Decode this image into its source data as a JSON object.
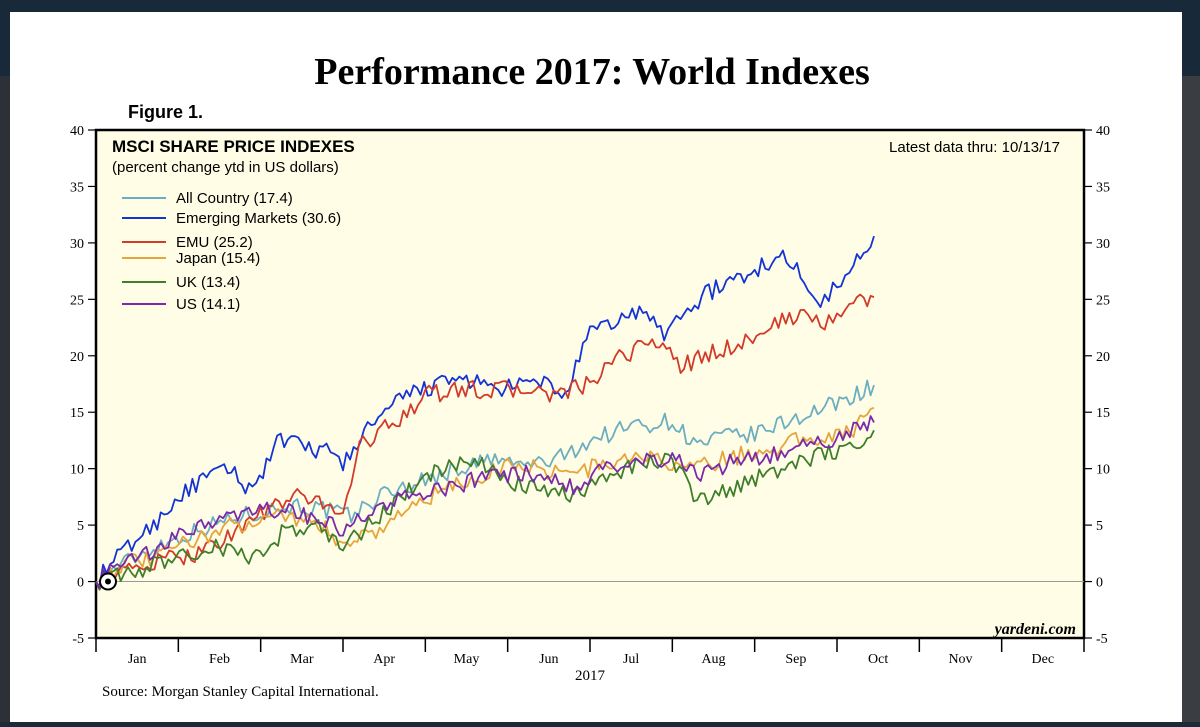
{
  "title": "Performance 2017: World Indexes",
  "figure_label": "Figure 1.",
  "source_note": "Source: Morgan Stanley Capital International.",
  "watermark": "yardeni.com",
  "colors": {
    "background": "#fffde6",
    "all_country": "#6aaec0",
    "emerging": "#1433d6",
    "emu": "#d23a2a",
    "japan": "#e6a43c",
    "uk": "#3f7e2a",
    "us": "#7a2aa8"
  },
  "chart_data": {
    "type": "line",
    "title": "MSCI SHARE PRICE INDEXES",
    "subtitle": "(percent change ytd in US dollars)",
    "latest_label": "Latest data thru: 10/13/17",
    "xlabel": "2017",
    "ylabel": "",
    "ylim": [
      -5,
      40
    ],
    "yticks": [
      -5,
      0,
      5,
      10,
      15,
      20,
      25,
      30,
      35,
      40
    ],
    "months": [
      "Jan",
      "Feb",
      "Mar",
      "Apr",
      "May",
      "Jun",
      "Jul",
      "Aug",
      "Sep",
      "Oct",
      "Nov",
      "Dec"
    ],
    "x_unit": "months since Jan 1",
    "xlim": [
      0,
      12
    ],
    "grid": false,
    "legend_position": "top-left",
    "series": [
      {
        "name": "All Country (17.4)",
        "color": "#6aaec0",
        "x": [
          0,
          0.3,
          0.7,
          1.1,
          1.6,
          2.0,
          2.4,
          2.8,
          3.1,
          3.5,
          4.0,
          4.4,
          4.8,
          5.2,
          5.6,
          6.0,
          6.5,
          7.0,
          7.3,
          7.6,
          8.0,
          8.5,
          8.9,
          9.2,
          9.45
        ],
        "values": [
          0,
          1.5,
          3.0,
          4.2,
          5.5,
          6.2,
          6.8,
          6.3,
          5.8,
          7.8,
          9.0,
          10.0,
          10.8,
          10.3,
          10.8,
          12.5,
          13.8,
          14.2,
          12.0,
          12.8,
          13.0,
          14.5,
          15.5,
          16.5,
          17.4
        ]
      },
      {
        "name": "Emerging Markets (30.6)",
        "color": "#1433d6",
        "x": [
          0,
          0.3,
          0.7,
          1.0,
          1.3,
          1.6,
          1.9,
          2.2,
          2.5,
          2.8,
          3.0,
          3.3,
          3.6,
          3.9,
          4.2,
          4.5,
          4.8,
          5.1,
          5.4,
          5.7,
          6.0,
          6.3,
          6.6,
          6.9,
          7.1,
          7.4,
          7.7,
          8.0,
          8.3,
          8.6,
          8.8,
          9.0,
          9.2,
          9.45
        ],
        "values": [
          0,
          2.5,
          5.0,
          7.5,
          9.0,
          10.0,
          8.0,
          12.5,
          12.0,
          11.5,
          10.5,
          13.5,
          15.5,
          17.0,
          17.5,
          18.0,
          17.0,
          17.2,
          17.8,
          16.5,
          22.0,
          23.0,
          24.0,
          22.0,
          23.5,
          25.5,
          26.5,
          27.5,
          29.0,
          27.0,
          25.0,
          26.0,
          28.0,
          30.6
        ]
      },
      {
        "name": "EMU (25.2)",
        "color": "#d23a2a",
        "x": [
          0,
          0.4,
          0.8,
          1.2,
          1.6,
          2.0,
          2.4,
          2.8,
          3.0,
          3.2,
          3.6,
          4.0,
          4.4,
          4.8,
          5.2,
          5.6,
          6.0,
          6.4,
          6.8,
          7.1,
          7.4,
          7.8,
          8.2,
          8.6,
          8.8,
          9.0,
          9.2,
          9.45
        ],
        "values": [
          0,
          1.0,
          1.8,
          2.5,
          4.0,
          6.0,
          7.5,
          7.0,
          6.0,
          12.0,
          14.0,
          16.5,
          17.0,
          17.0,
          17.0,
          16.5,
          17.5,
          20.0,
          21.5,
          19.0,
          20.0,
          21.0,
          22.5,
          24.0,
          22.5,
          24.0,
          24.5,
          25.2
        ]
      },
      {
        "name": "Japan (15.4)",
        "color": "#e6a43c",
        "x": [
          0,
          0.3,
          0.7,
          1.1,
          1.5,
          1.9,
          2.3,
          2.7,
          3.0,
          3.4,
          3.8,
          4.2,
          4.6,
          5.0,
          5.4,
          5.8,
          6.2,
          6.6,
          7.0,
          7.3,
          7.7,
          8.1,
          8.5,
          8.9,
          9.2,
          9.45
        ],
        "values": [
          0,
          1.5,
          2.0,
          3.5,
          4.5,
          5.5,
          6.0,
          5.0,
          3.5,
          4.5,
          6.5,
          8.0,
          9.0,
          10.5,
          10.0,
          9.5,
          10.5,
          11.0,
          10.5,
          10.0,
          11.0,
          11.5,
          12.5,
          13.0,
          13.5,
          15.4
        ]
      },
      {
        "name": "UK (13.4)",
        "color": "#3f7e2a",
        "x": [
          0,
          0.3,
          0.7,
          1.1,
          1.5,
          1.9,
          2.3,
          2.7,
          3.0,
          3.4,
          3.8,
          4.2,
          4.6,
          5.0,
          5.4,
          5.8,
          6.2,
          6.6,
          7.0,
          7.3,
          7.7,
          8.1,
          8.5,
          8.9,
          9.2,
          9.45
        ],
        "values": [
          0,
          0.5,
          1.5,
          2.5,
          3.0,
          2.0,
          4.5,
          5.0,
          3.0,
          5.5,
          8.0,
          10.0,
          10.5,
          9.0,
          8.0,
          7.5,
          9.5,
          10.5,
          11.0,
          7.0,
          8.0,
          9.5,
          10.5,
          11.5,
          12.0,
          13.4
        ]
      },
      {
        "name": "US (14.1)",
        "color": "#7a2aa8",
        "x": [
          0,
          0.3,
          0.7,
          1.1,
          1.5,
          1.9,
          2.3,
          2.7,
          3.0,
          3.4,
          3.8,
          4.2,
          4.6,
          5.0,
          5.4,
          5.8,
          6.2,
          6.6,
          7.0,
          7.3,
          7.7,
          8.1,
          8.5,
          8.9,
          9.2,
          9.45
        ],
        "values": [
          0,
          1.5,
          2.5,
          4.5,
          5.5,
          6.0,
          6.5,
          5.5,
          4.5,
          6.5,
          7.5,
          8.0,
          9.0,
          9.5,
          9.5,
          8.5,
          10.0,
          10.5,
          11.0,
          9.5,
          10.5,
          11.0,
          12.0,
          12.5,
          13.5,
          14.1
        ]
      }
    ]
  }
}
